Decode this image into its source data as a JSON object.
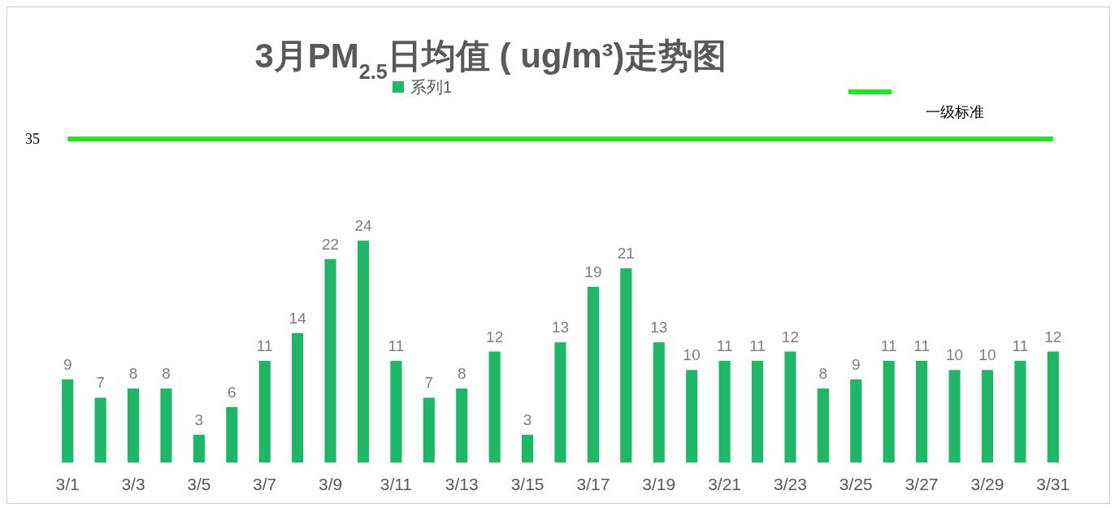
{
  "chart_data": {
    "type": "bar",
    "title": "3月PM$_{2.5}$日均值 ( ug/m³)走势图",
    "categories": [
      "3/1",
      null,
      "3/3",
      null,
      "3/5",
      null,
      "3/7",
      null,
      "3/9",
      null,
      "3/11",
      null,
      "3/13",
      null,
      "3/15",
      null,
      "3/17",
      null,
      "3/19",
      null,
      "3/21",
      null,
      "3/23",
      null,
      "3/25",
      null,
      "3/27",
      null,
      "3/29",
      null,
      "3/31"
    ],
    "series": [
      {
        "name": "系列1",
        "color": "#1db866",
        "values": [
          9,
          7,
          8,
          8,
          3,
          6,
          11,
          14,
          22,
          24,
          11,
          7,
          8,
          12,
          3,
          13,
          19,
          21,
          13,
          10,
          11,
          11,
          12,
          8,
          9,
          11,
          11,
          10,
          10,
          11,
          12
        ]
      }
    ],
    "annotations": [
      "35"
    ],
    "ref_lines": [
      {
        "axis": "y",
        "value": 35,
        "label": "一级标准",
        "color": "#1ee81e"
      }
    ],
    "data_labels": true,
    "legend": "top"
  }
}
